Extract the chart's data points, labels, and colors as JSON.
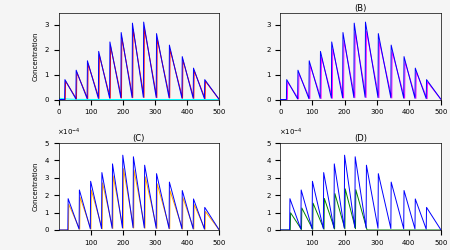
{
  "panels": [
    {
      "label": "",
      "colors": [
        "blue",
        "red",
        "cyan"
      ],
      "ylim": [
        0,
        3.5
      ],
      "yticks": [
        0,
        1,
        2,
        3
      ],
      "xlim": [
        0,
        500
      ],
      "xticks": [
        0,
        100,
        200,
        300,
        400,
        500
      ],
      "ylabel": "Concentration",
      "scale": 1.0
    },
    {
      "label": "(B)",
      "colors": [
        "blue",
        "magenta"
      ],
      "ylim": [
        0,
        3.5
      ],
      "yticks": [
        0,
        1,
        2,
        3
      ],
      "xlim": [
        0,
        500
      ],
      "xticks": [
        0,
        100,
        200,
        300,
        400,
        500
      ],
      "ylabel": "",
      "scale": 1.0
    },
    {
      "label": "(C)",
      "colors": [
        "blue",
        "orange"
      ],
      "ylim": [
        0,
        0.0005
      ],
      "yticks": [
        0,
        0.0001,
        0.0002,
        0.0003,
        0.0004,
        0.0005
      ],
      "xlim": [
        0,
        500
      ],
      "xticks": [
        100,
        200,
        300,
        400,
        500
      ],
      "ylabel": "Concentration",
      "scale": 0.0001
    },
    {
      "label": "(D)",
      "colors": [
        "blue",
        "green"
      ],
      "ylim": [
        0,
        0.0005
      ],
      "yticks": [
        0,
        0.0001,
        0.0002,
        0.0003,
        0.0004,
        0.0005
      ],
      "xlim": [
        0,
        500
      ],
      "xticks": [
        100,
        200,
        300,
        400,
        500
      ],
      "ylabel": "",
      "scale": 0.0001
    }
  ],
  "background_color": "#f5f5f5",
  "spike_times_AB": [
    20,
    55,
    90,
    125,
    160,
    195,
    230,
    265,
    305,
    345,
    385,
    420,
    455
  ],
  "spike_times_CD": [
    30,
    65,
    100,
    135,
    168,
    200,
    233,
    268,
    305,
    345,
    385,
    420,
    455
  ]
}
